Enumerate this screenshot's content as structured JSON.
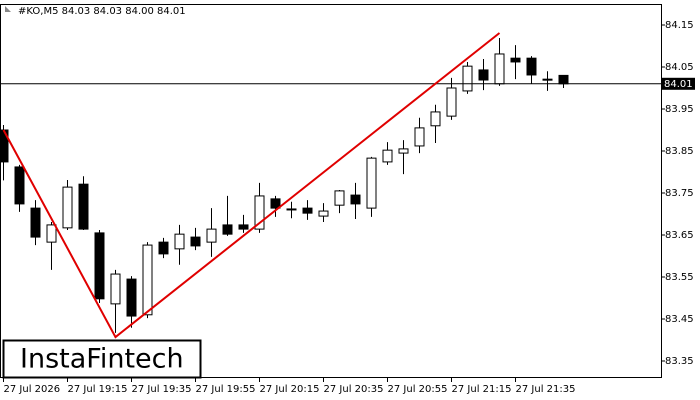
{
  "chart_data": {
    "type": "candlestick",
    "title": "#KO,M5 84.03 84.03 84.00 84.01",
    "categories": [
      "27 Jul 2026",
      null,
      null,
      null,
      "27 Jul 19:15",
      null,
      null,
      null,
      "27 Jul 19:35",
      null,
      null,
      null,
      "27 Jul 19:55",
      null,
      null,
      null,
      "27 Jul 20:15",
      null,
      null,
      null,
      "27 Jul 20:35",
      null,
      null,
      null,
      "27 Jul 20:55",
      null,
      null,
      null,
      "27 Jul 21:15",
      null,
      null,
      null,
      "27 Jul 21:35",
      null,
      null,
      null
    ],
    "open": [
      83.9,
      83.812,
      83.714,
      83.633,
      83.667,
      83.771,
      83.655,
      83.486,
      83.545,
      83.46,
      83.633,
      83.617,
      83.645,
      83.633,
      83.674,
      83.674,
      83.664,
      83.736,
      83.712,
      83.714,
      83.695,
      83.721,
      83.745,
      83.714,
      83.824,
      83.845,
      83.862,
      83.91,
      83.933,
      83.993,
      84.043,
      84.01,
      84.071,
      84.071,
      84.021,
      84.03
    ],
    "high": [
      83.912,
      83.817,
      83.733,
      83.681,
      83.781,
      83.79,
      83.662,
      83.567,
      83.552,
      83.633,
      83.643,
      83.674,
      83.667,
      83.714,
      83.743,
      83.698,
      83.774,
      83.743,
      83.729,
      83.733,
      83.726,
      83.757,
      83.774,
      83.836,
      83.871,
      83.876,
      83.929,
      83.96,
      84.024,
      84.062,
      84.069,
      84.119,
      84.102,
      84.076,
      84.04,
      84.03
    ],
    "low": [
      83.78,
      83.705,
      83.626,
      83.567,
      83.662,
      83.662,
      83.488,
      83.417,
      83.429,
      83.452,
      83.595,
      83.579,
      83.614,
      83.598,
      83.648,
      83.655,
      83.655,
      83.693,
      83.69,
      83.686,
      83.681,
      83.702,
      83.688,
      83.693,
      83.817,
      83.795,
      83.845,
      83.869,
      83.924,
      83.986,
      83.995,
      84.005,
      84.021,
      84.01,
      83.993,
      84.0
    ],
    "close": [
      83.824,
      83.724,
      83.645,
      83.674,
      83.764,
      83.664,
      83.498,
      83.557,
      83.457,
      83.626,
      83.605,
      83.652,
      83.624,
      83.664,
      83.652,
      83.664,
      83.743,
      83.714,
      83.71,
      83.702,
      83.707,
      83.755,
      83.724,
      83.833,
      83.852,
      83.855,
      83.905,
      83.943,
      84.0,
      84.052,
      84.019,
      84.081,
      84.062,
      84.031,
      84.02,
      84.01
    ],
    "up_color": "#ffffff",
    "down_color": "#000000",
    "ylim": [
      83.3095,
      84.1976
    ],
    "yticks": [
      83.35,
      83.45,
      83.55,
      83.65,
      83.75,
      83.85,
      83.95,
      84.05,
      84.15
    ],
    "current_price": 84.01,
    "pattern_line": {
      "color": "#e00000",
      "points": [
        [
          0,
          83.9
        ],
        [
          7,
          83.407
        ],
        [
          31,
          84.131
        ]
      ]
    },
    "watermark": "InstaFintech"
  }
}
